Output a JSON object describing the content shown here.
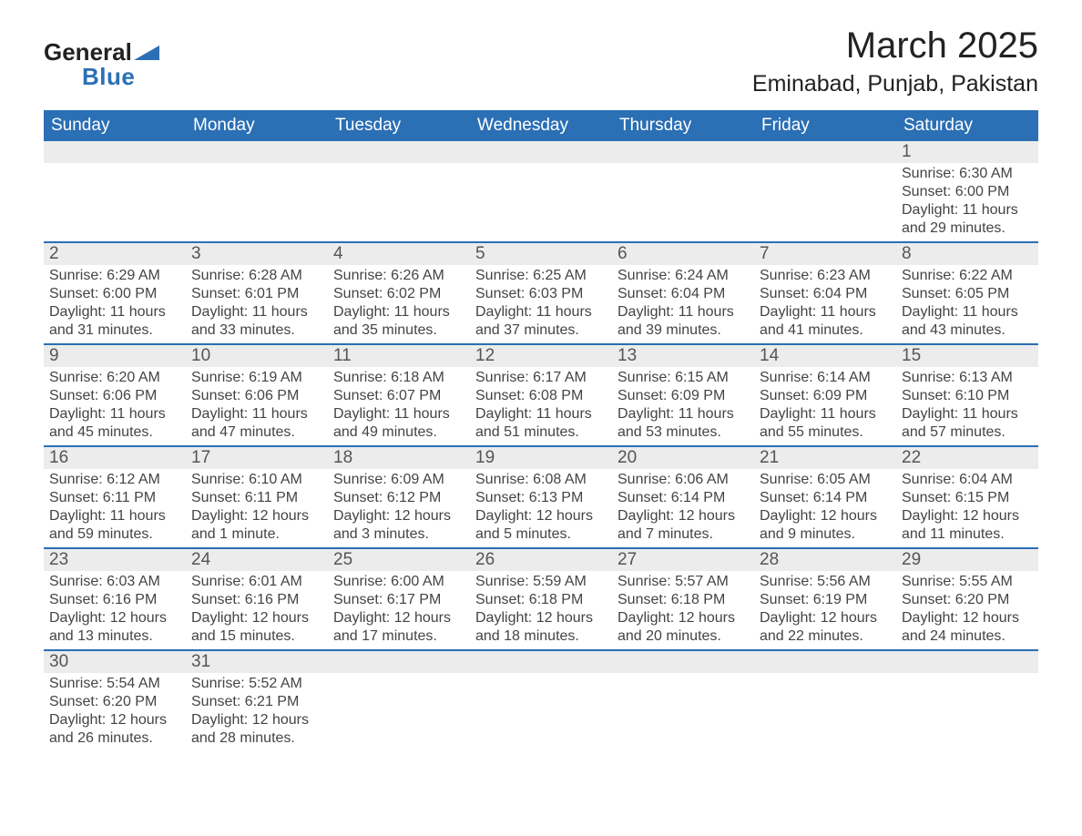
{
  "logo": {
    "line1": "General",
    "line2": "Blue"
  },
  "title": "March 2025",
  "subtitle": "Eminabad, Punjab, Pakistan",
  "colors": {
    "header_bg": "#2b6fb5",
    "header_text": "#ffffff",
    "daynum_bg": "#ececec",
    "daynum_text": "#555555",
    "row_divider": "#2b6fb5",
    "body_text": "#444444",
    "page_bg": "#ffffff",
    "accent": "#2b6fb5"
  },
  "layout": {
    "columns": 7,
    "weeks": 6,
    "first_day_column_index": 6
  },
  "fontsize": {
    "title": 40,
    "subtitle": 25,
    "weekday_header": 19,
    "daynum": 19,
    "cell_detail": 16,
    "logo": 26
  },
  "weekday_headers": [
    "Sunday",
    "Monday",
    "Tuesday",
    "Wednesday",
    "Thursday",
    "Friday",
    "Saturday"
  ],
  "weeks": [
    [
      null,
      null,
      null,
      null,
      null,
      null,
      {
        "n": "1",
        "sr": "Sunrise: 6:30 AM",
        "ss": "Sunset: 6:00 PM",
        "d1": "Daylight: 11 hours",
        "d2": "and 29 minutes."
      }
    ],
    [
      {
        "n": "2",
        "sr": "Sunrise: 6:29 AM",
        "ss": "Sunset: 6:00 PM",
        "d1": "Daylight: 11 hours",
        "d2": "and 31 minutes."
      },
      {
        "n": "3",
        "sr": "Sunrise: 6:28 AM",
        "ss": "Sunset: 6:01 PM",
        "d1": "Daylight: 11 hours",
        "d2": "and 33 minutes."
      },
      {
        "n": "4",
        "sr": "Sunrise: 6:26 AM",
        "ss": "Sunset: 6:02 PM",
        "d1": "Daylight: 11 hours",
        "d2": "and 35 minutes."
      },
      {
        "n": "5",
        "sr": "Sunrise: 6:25 AM",
        "ss": "Sunset: 6:03 PM",
        "d1": "Daylight: 11 hours",
        "d2": "and 37 minutes."
      },
      {
        "n": "6",
        "sr": "Sunrise: 6:24 AM",
        "ss": "Sunset: 6:04 PM",
        "d1": "Daylight: 11 hours",
        "d2": "and 39 minutes."
      },
      {
        "n": "7",
        "sr": "Sunrise: 6:23 AM",
        "ss": "Sunset: 6:04 PM",
        "d1": "Daylight: 11 hours",
        "d2": "and 41 minutes."
      },
      {
        "n": "8",
        "sr": "Sunrise: 6:22 AM",
        "ss": "Sunset: 6:05 PM",
        "d1": "Daylight: 11 hours",
        "d2": "and 43 minutes."
      }
    ],
    [
      {
        "n": "9",
        "sr": "Sunrise: 6:20 AM",
        "ss": "Sunset: 6:06 PM",
        "d1": "Daylight: 11 hours",
        "d2": "and 45 minutes."
      },
      {
        "n": "10",
        "sr": "Sunrise: 6:19 AM",
        "ss": "Sunset: 6:06 PM",
        "d1": "Daylight: 11 hours",
        "d2": "and 47 minutes."
      },
      {
        "n": "11",
        "sr": "Sunrise: 6:18 AM",
        "ss": "Sunset: 6:07 PM",
        "d1": "Daylight: 11 hours",
        "d2": "and 49 minutes."
      },
      {
        "n": "12",
        "sr": "Sunrise: 6:17 AM",
        "ss": "Sunset: 6:08 PM",
        "d1": "Daylight: 11 hours",
        "d2": "and 51 minutes."
      },
      {
        "n": "13",
        "sr": "Sunrise: 6:15 AM",
        "ss": "Sunset: 6:09 PM",
        "d1": "Daylight: 11 hours",
        "d2": "and 53 minutes."
      },
      {
        "n": "14",
        "sr": "Sunrise: 6:14 AM",
        "ss": "Sunset: 6:09 PM",
        "d1": "Daylight: 11 hours",
        "d2": "and 55 minutes."
      },
      {
        "n": "15",
        "sr": "Sunrise: 6:13 AM",
        "ss": "Sunset: 6:10 PM",
        "d1": "Daylight: 11 hours",
        "d2": "and 57 minutes."
      }
    ],
    [
      {
        "n": "16",
        "sr": "Sunrise: 6:12 AM",
        "ss": "Sunset: 6:11 PM",
        "d1": "Daylight: 11 hours",
        "d2": "and 59 minutes."
      },
      {
        "n": "17",
        "sr": "Sunrise: 6:10 AM",
        "ss": "Sunset: 6:11 PM",
        "d1": "Daylight: 12 hours",
        "d2": "and 1 minute."
      },
      {
        "n": "18",
        "sr": "Sunrise: 6:09 AM",
        "ss": "Sunset: 6:12 PM",
        "d1": "Daylight: 12 hours",
        "d2": "and 3 minutes."
      },
      {
        "n": "19",
        "sr": "Sunrise: 6:08 AM",
        "ss": "Sunset: 6:13 PM",
        "d1": "Daylight: 12 hours",
        "d2": "and 5 minutes."
      },
      {
        "n": "20",
        "sr": "Sunrise: 6:06 AM",
        "ss": "Sunset: 6:14 PM",
        "d1": "Daylight: 12 hours",
        "d2": "and 7 minutes."
      },
      {
        "n": "21",
        "sr": "Sunrise: 6:05 AM",
        "ss": "Sunset: 6:14 PM",
        "d1": "Daylight: 12 hours",
        "d2": "and 9 minutes."
      },
      {
        "n": "22",
        "sr": "Sunrise: 6:04 AM",
        "ss": "Sunset: 6:15 PM",
        "d1": "Daylight: 12 hours",
        "d2": "and 11 minutes."
      }
    ],
    [
      {
        "n": "23",
        "sr": "Sunrise: 6:03 AM",
        "ss": "Sunset: 6:16 PM",
        "d1": "Daylight: 12 hours",
        "d2": "and 13 minutes."
      },
      {
        "n": "24",
        "sr": "Sunrise: 6:01 AM",
        "ss": "Sunset: 6:16 PM",
        "d1": "Daylight: 12 hours",
        "d2": "and 15 minutes."
      },
      {
        "n": "25",
        "sr": "Sunrise: 6:00 AM",
        "ss": "Sunset: 6:17 PM",
        "d1": "Daylight: 12 hours",
        "d2": "and 17 minutes."
      },
      {
        "n": "26",
        "sr": "Sunrise: 5:59 AM",
        "ss": "Sunset: 6:18 PM",
        "d1": "Daylight: 12 hours",
        "d2": "and 18 minutes."
      },
      {
        "n": "27",
        "sr": "Sunrise: 5:57 AM",
        "ss": "Sunset: 6:18 PM",
        "d1": "Daylight: 12 hours",
        "d2": "and 20 minutes."
      },
      {
        "n": "28",
        "sr": "Sunrise: 5:56 AM",
        "ss": "Sunset: 6:19 PM",
        "d1": "Daylight: 12 hours",
        "d2": "and 22 minutes."
      },
      {
        "n": "29",
        "sr": "Sunrise: 5:55 AM",
        "ss": "Sunset: 6:20 PM",
        "d1": "Daylight: 12 hours",
        "d2": "and 24 minutes."
      }
    ],
    [
      {
        "n": "30",
        "sr": "Sunrise: 5:54 AM",
        "ss": "Sunset: 6:20 PM",
        "d1": "Daylight: 12 hours",
        "d2": "and 26 minutes."
      },
      {
        "n": "31",
        "sr": "Sunrise: 5:52 AM",
        "ss": "Sunset: 6:21 PM",
        "d1": "Daylight: 12 hours",
        "d2": "and 28 minutes."
      },
      null,
      null,
      null,
      null,
      null
    ]
  ]
}
